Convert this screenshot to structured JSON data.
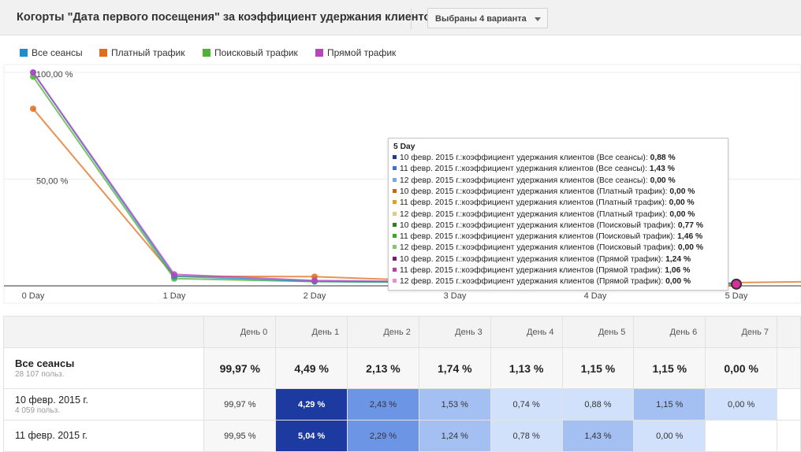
{
  "header": {
    "title": "Когорты \"Дата первого посещения\" за коэффициент удержания клиентов",
    "dropdown_label": "Выбраны 4 варианта"
  },
  "legend": [
    {
      "label": "Все сеансы",
      "color": "#1a8fc9"
    },
    {
      "label": "Платный трафик",
      "color": "#e06d1b"
    },
    {
      "label": "Поисковый трафик",
      "color": "#4fb232"
    },
    {
      "label": "Прямой трафик",
      "color": "#b547bd"
    }
  ],
  "chart_data": {
    "type": "line",
    "x": [
      "0 Day",
      "1 Day",
      "2 Day",
      "3 Day",
      "4 Day",
      "5 Day"
    ],
    "y_ticks": [
      "100,00 %",
      "50,00 %"
    ],
    "ylim": [
      0,
      100
    ],
    "grid": true,
    "legend_placement": "top-left",
    "series": [
      {
        "name": "Все сеансы",
        "color": "#1a8fc9",
        "values": [
          99.97,
          4.49,
          2.13,
          1.74,
          1.13,
          1.15
        ]
      },
      {
        "name": "Платный трафик",
        "color": "#e06d1b",
        "values": [
          83,
          4.5,
          4.3,
          2.0,
          1.0,
          0.0
        ]
      },
      {
        "name": "Поисковый трафик",
        "color": "#4fb232",
        "values": [
          98,
          3.4,
          2.0,
          1.5,
          1.0,
          0.77
        ]
      },
      {
        "name": "Прямой трафик",
        "color": "#b547bd",
        "values": [
          100,
          5.4,
          2.5,
          1.8,
          1.2,
          1.24
        ]
      }
    ]
  },
  "tooltip": {
    "title": "5 Day",
    "rows": [
      {
        "label": "10 февр. 2015 г.:коэффициент удержания клиентов (Все сеансы):",
        "value": "0,88 %",
        "color": "#1f3a93"
      },
      {
        "label": "11 февр. 2015 г.:коэффициент удержания клиентов (Все сеансы):",
        "value": "1,43 %",
        "color": "#3a6fd8"
      },
      {
        "label": "12 февр. 2015 г.:коэффициент удержания клиентов (Все сеансы):",
        "value": "0,00 %",
        "color": "#7aa6e8"
      },
      {
        "label": "10 февр. 2015 г.:коэффициент удержания клиентов (Платный трафик):",
        "value": "0,00 %",
        "color": "#c9660f"
      },
      {
        "label": "11 февр. 2015 г.:коэффициент удержания клиентов (Платный трафик):",
        "value": "0,00 %",
        "color": "#e0a21b"
      },
      {
        "label": "12 февр. 2015 г.:коэффициент удержания клиентов (Платный трафик):",
        "value": "0,00 %",
        "color": "#ecc77a"
      },
      {
        "label": "10 февр. 2015 г.:коэффициент удержания клиентов (Поисковый трафик):",
        "value": "0,77 %",
        "color": "#2f7d1d"
      },
      {
        "label": "11 февр. 2015 г.:коэффициент удержания клиентов (Поисковый трафик):",
        "value": "1,46 %",
        "color": "#3ea52a"
      },
      {
        "label": "12 февр. 2015 г.:коэффициент удержания клиентов (Поисковый трафик):",
        "value": "0,00 %",
        "color": "#7fcb6a"
      },
      {
        "label": "10 февр. 2015 г.:коэффициент удержания клиентов (Прямой трафик):",
        "value": "1,24 %",
        "color": "#7a1c73"
      },
      {
        "label": "11 февр. 2015 г.:коэффициент удержания клиентов (Прямой трафик):",
        "value": "1,06 %",
        "color": "#c03aa3"
      },
      {
        "label": "12 февр. 2015 г.:коэффициент удержания клиентов (Прямой трафик):",
        "value": "0,00 %",
        "color": "#e890cf"
      }
    ]
  },
  "table": {
    "day_headers": [
      "День 0",
      "День 1",
      "День 2",
      "День 3",
      "День 4",
      "День 5",
      "День 6",
      "День 7"
    ],
    "total": {
      "name": "Все сеансы",
      "users": "28 107 польз.",
      "values": [
        "99,97 %",
        "4,49 %",
        "2,13 %",
        "1,74 %",
        "1,13 %",
        "1,15 %",
        "1,15 %",
        "0,00 %"
      ]
    },
    "rows": [
      {
        "name": "10 февр. 2015 г.",
        "users": "4 059 польз.",
        "values": [
          "99,97 %",
          "4,29 %",
          "2,43 %",
          "1,53 %",
          "0,74 %",
          "0,88 %",
          "1,15 %",
          "0,00 %"
        ],
        "colors": [
          "#f7f7f7",
          "#1d3aa1",
          "#6d95e6",
          "#a4bff2",
          "#d2e1fb",
          "#d2e1fb",
          "#a4bff2",
          "#d2e1fb"
        ]
      },
      {
        "name": "11 февр. 2015 г.",
        "users": "",
        "values": [
          "99,95 %",
          "5,04 %",
          "2,29 %",
          "1,24 %",
          "0,78 %",
          "1,43 %",
          "0,00 %",
          ""
        ],
        "colors": [
          "#f7f7f7",
          "#1d3aa1",
          "#6d95e6",
          "#a4bff2",
          "#d2e1fb",
          "#a4bff2",
          "#d2e1fb",
          "#ffffff"
        ]
      }
    ]
  }
}
